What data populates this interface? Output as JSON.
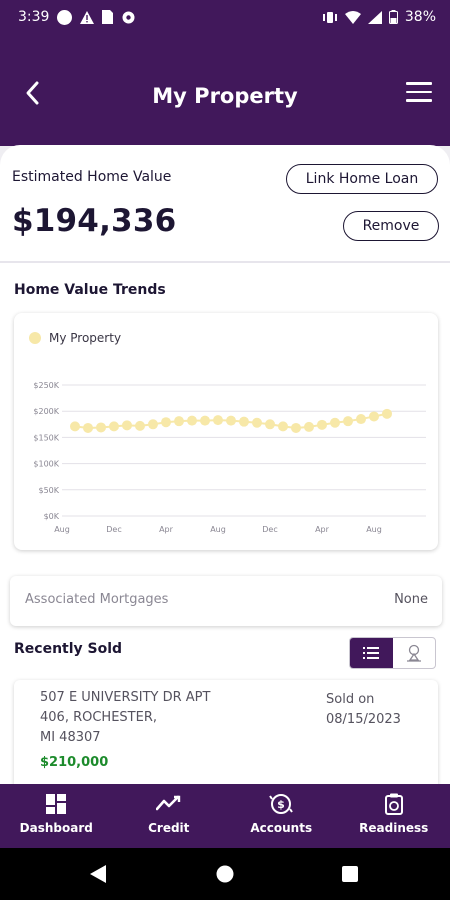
{
  "status_bar": {
    "time": "3:39",
    "battery": "38%",
    "left_icons": [
      "circle-icon",
      "warning-icon",
      "sim-icon",
      "settings-icon"
    ],
    "right_icons": [
      "vibrate-icon",
      "wifi-icon",
      "signal-icon",
      "battery-icon"
    ]
  },
  "header": {
    "title": "My Property",
    "back_icon": "chevron-left-icon",
    "menu_icon": "hamburger-menu-icon"
  },
  "home_value": {
    "label": "Estimated Home Value",
    "value": "$194,336",
    "link_loan_label": "Link Home Loan",
    "remove_label": "Remove"
  },
  "trends": {
    "title": "Home Value Trends"
  },
  "chart_data": {
    "type": "line",
    "title": "",
    "legend": [
      "My Property"
    ],
    "legend_placement": "top-left",
    "x_ticks": [
      "Aug",
      "Dec",
      "Apr",
      "Aug",
      "Dec",
      "Apr",
      "Aug"
    ],
    "y_ticks": [
      "$0K",
      "$50K",
      "$100K",
      "$150K",
      "$200K",
      "$250K"
    ],
    "ylim": [
      0,
      250000
    ],
    "grid": true,
    "series": [
      {
        "name": "My Property",
        "color": "#f7e8a8",
        "x": [
          "2021-09",
          "2021-10",
          "2021-11",
          "2021-12",
          "2022-01",
          "2022-02",
          "2022-03",
          "2022-04",
          "2022-05",
          "2022-06",
          "2022-07",
          "2022-08",
          "2022-09",
          "2022-10",
          "2022-11",
          "2022-12",
          "2023-01",
          "2023-02",
          "2023-03",
          "2023-04",
          "2023-05",
          "2023-06",
          "2023-07",
          "2023-08",
          "2023-09"
        ],
        "values": [
          171000,
          168000,
          169000,
          171000,
          173000,
          172000,
          175000,
          179000,
          181000,
          182000,
          182000,
          183000,
          182000,
          180000,
          178000,
          175000,
          171000,
          168000,
          170000,
          174000,
          178000,
          181000,
          185000,
          190000,
          195000
        ]
      }
    ]
  },
  "mortgages": {
    "label": "Associated Mortgages",
    "value": "None"
  },
  "recently_sold": {
    "title": "Recently Sold",
    "view_toggle": [
      "list-view-icon",
      "map-view-icon"
    ],
    "items": [
      {
        "address_line1": "507 E UNIVERSITY DR APT",
        "address_line2": "406, ROCHESTER,",
        "address_line3": "MI 48307",
        "price": "$210,000",
        "sold_on_label": "Sold on",
        "sold_date": "08/15/2023"
      }
    ]
  },
  "bottom_nav": [
    {
      "label": "Dashboard",
      "icon": "dashboard-icon"
    },
    {
      "label": "Credit",
      "icon": "trend-line-icon"
    },
    {
      "label": "Accounts",
      "icon": "accounts-exchange-icon"
    },
    {
      "label": "Readiness",
      "icon": "readiness-document-icon"
    }
  ],
  "system_nav": [
    "back-triangle-icon",
    "home-circle-icon",
    "recents-square-icon"
  ]
}
